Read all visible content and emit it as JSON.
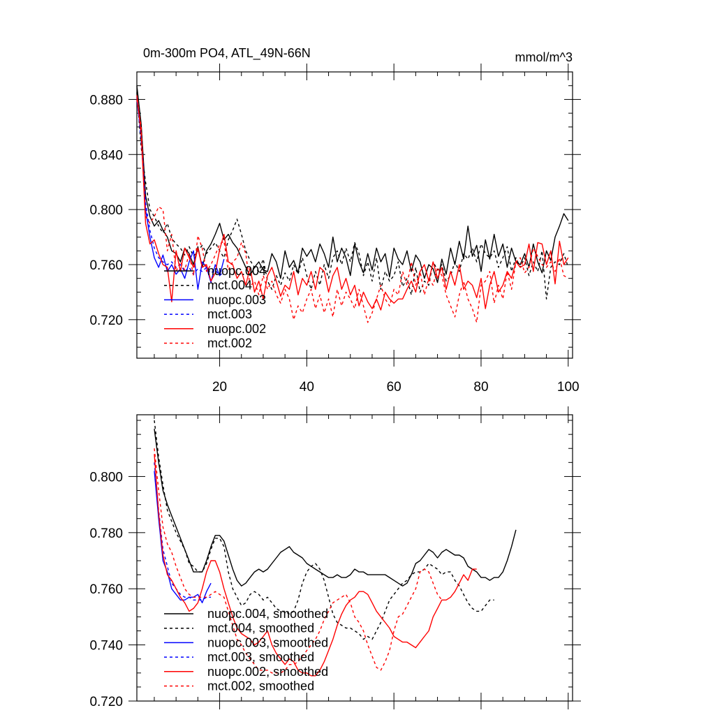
{
  "chart_data": [
    {
      "type": "line",
      "title": "0m-300m PO4, ATL_49N-66N",
      "units": "mmol/m^3",
      "xlim": [
        1,
        101
      ],
      "ylim": [
        0.692,
        0.9
      ],
      "x_ticks": [
        20,
        40,
        60,
        80,
        100
      ],
      "y_ticks": [
        0.72,
        0.76,
        0.8,
        0.84,
        0.88
      ],
      "y_tick_labels": [
        "0.720",
        "0.760",
        "0.800",
        "0.840",
        "0.880"
      ],
      "x_start": 1,
      "series": [
        {
          "name": "nuopc.004",
          "color": "#000000",
          "dash": "solid",
          "values": [
            0.89,
            0.862,
            0.81,
            0.795,
            0.788,
            0.792,
            0.785,
            0.78,
            0.77,
            0.768,
            0.762,
            0.772,
            0.768,
            0.76,
            0.773,
            0.758,
            0.77,
            0.775,
            0.782,
            0.79,
            0.778,
            0.782,
            0.776,
            0.772,
            0.765,
            0.758,
            0.752,
            0.758,
            0.762,
            0.756,
            0.755,
            0.768,
            0.762,
            0.75,
            0.77,
            0.758,
            0.763,
            0.754,
            0.772,
            0.766,
            0.771,
            0.762,
            0.775,
            0.768,
            0.758,
            0.78,
            0.762,
            0.772,
            0.765,
            0.752,
            0.775,
            0.762,
            0.754,
            0.768,
            0.756,
            0.772,
            0.762,
            0.768,
            0.751,
            0.772,
            0.764,
            0.76,
            0.77,
            0.755,
            0.767,
            0.762,
            0.75,
            0.76,
            0.757,
            0.747,
            0.764,
            0.753,
            0.772,
            0.76,
            0.777,
            0.764,
            0.788,
            0.766,
            0.774,
            0.755,
            0.778,
            0.764,
            0.782,
            0.766,
            0.775,
            0.758,
            0.772,
            0.762,
            0.76,
            0.768,
            0.758,
            0.775,
            0.762,
            0.754,
            0.77,
            0.763,
            0.78,
            0.788,
            0.797,
            0.792
          ]
        },
        {
          "name": "mct.004",
          "color": "#000000",
          "dash": "dashed",
          "values": [
            0.885,
            0.845,
            0.82,
            0.8,
            0.795,
            0.788,
            0.783,
            0.79,
            0.779,
            0.775,
            0.772,
            0.767,
            0.773,
            0.766,
            0.77,
            0.774,
            0.768,
            0.772,
            0.776,
            0.77,
            0.765,
            0.778,
            0.785,
            0.793,
            0.782,
            0.77,
            0.763,
            0.758,
            0.755,
            0.764,
            0.748,
            0.742,
            0.752,
            0.745,
            0.754,
            0.748,
            0.76,
            0.753,
            0.765,
            0.752,
            0.742,
            0.755,
            0.745,
            0.76,
            0.75,
            0.765,
            0.77,
            0.76,
            0.772,
            0.762,
            0.776,
            0.768,
            0.752,
            0.762,
            0.748,
            0.765,
            0.742,
            0.755,
            0.748,
            0.752,
            0.762,
            0.744,
            0.75,
            0.738,
            0.758,
            0.74,
            0.748,
            0.745,
            0.762,
            0.756,
            0.76,
            0.748,
            0.752,
            0.762,
            0.755,
            0.768,
            0.764,
            0.772,
            0.762,
            0.775,
            0.768,
            0.765,
            0.77,
            0.758,
            0.765,
            0.773,
            0.755,
            0.765,
            0.758,
            0.765,
            0.752,
            0.762,
            0.755,
            0.77,
            0.735,
            0.758,
            0.762,
            0.76,
            0.768,
            0.758
          ]
        },
        {
          "name": "nuopc.003",
          "color": "#0000ff",
          "dash": "solid",
          "values": [
            0.88,
            0.855,
            0.8,
            0.78,
            0.765,
            0.758,
            0.767,
            0.755,
            0.76,
            0.753,
            0.757,
            0.75,
            0.762,
            0.77,
            0.742,
            0.762,
            0.758,
            0.747,
            0.76,
            0.752,
            0.764
          ]
        },
        {
          "name": "mct.003",
          "color": "#0000ff",
          "dash": "dashed",
          "values": [
            0.882,
            0.85,
            0.805,
            0.785,
            0.772,
            0.765,
            0.762,
            0.76,
            0.762,
            0.758,
            0.76,
            0.755,
            0.758,
            0.753,
            0.757,
            0.755,
            0.758,
            0.754,
            0.756,
            0.752,
            0.755
          ]
        },
        {
          "name": "nuopc.002",
          "color": "#ff0000",
          "dash": "solid",
          "values": [
            0.883,
            0.855,
            0.79,
            0.775,
            0.778,
            0.768,
            0.76,
            0.758,
            0.733,
            0.77,
            0.755,
            0.772,
            0.765,
            0.758,
            0.772,
            0.758,
            0.76,
            0.748,
            0.754,
            0.771,
            0.782,
            0.762,
            0.76,
            0.75,
            0.755,
            0.745,
            0.758,
            0.74,
            0.748,
            0.735,
            0.752,
            0.758,
            0.748,
            0.737,
            0.745,
            0.742,
            0.755,
            0.738,
            0.75,
            0.745,
            0.755,
            0.742,
            0.758,
            0.755,
            0.74,
            0.752,
            0.758,
            0.742,
            0.75,
            0.738,
            0.745,
            0.73,
            0.74,
            0.733,
            0.728,
            0.735,
            0.727,
            0.74,
            0.735,
            0.732,
            0.735,
            0.735,
            0.742,
            0.748,
            0.74,
            0.755,
            0.76,
            0.748,
            0.762,
            0.75,
            0.758,
            0.742,
            0.755,
            0.745,
            0.76,
            0.742,
            0.748,
            0.745,
            0.736,
            0.75,
            0.728,
            0.745,
            0.755,
            0.74,
            0.745,
            0.755,
            0.75,
            0.762,
            0.758,
            0.76,
            0.775,
            0.755,
            0.776,
            0.775,
            0.76,
            0.77,
            0.746,
            0.777,
            0.76,
            0.765
          ]
        },
        {
          "name": "mct.002",
          "color": "#ff0000",
          "dash": "dashed",
          "values": [
            0.88,
            0.86,
            0.795,
            0.79,
            0.795,
            0.802,
            0.8,
            0.77,
            0.782,
            0.755,
            0.762,
            0.756,
            0.768,
            0.752,
            0.781,
            0.772,
            0.755,
            0.76,
            0.767,
            0.775,
            0.777,
            0.756,
            0.762,
            0.765,
            0.776,
            0.768,
            0.744,
            0.748,
            0.738,
            0.752,
            0.742,
            0.748,
            0.738,
            0.732,
            0.742,
            0.735,
            0.72,
            0.73,
            0.725,
            0.735,
            0.742,
            0.728,
            0.738,
            0.725,
            0.735,
            0.722,
            0.742,
            0.73,
            0.74,
            0.735,
            0.728,
            0.742,
            0.73,
            0.718,
            0.725,
            0.735,
            0.745,
            0.735,
            0.73,
            0.742,
            0.738,
            0.755,
            0.745,
            0.762,
            0.745,
            0.755,
            0.738,
            0.75,
            0.745,
            0.758,
            0.752,
            0.738,
            0.73,
            0.722,
            0.738,
            0.748,
            0.735,
            0.728,
            0.718,
            0.745,
            0.748,
            0.755,
            0.732,
            0.745,
            0.735,
            0.755,
            0.742,
            0.762,
            0.765,
            0.754,
            0.758,
            0.772,
            0.766,
            0.76,
            0.758,
            0.762,
            0.755,
            0.765,
            0.752,
            0.75
          ]
        }
      ],
      "legend": [
        "nuopc.004",
        "mct.004",
        "nuopc.003",
        "mct.003",
        "nuopc.002",
        "mct.002"
      ]
    },
    {
      "type": "line",
      "xlim": [
        1,
        101
      ],
      "ylim": [
        0.72,
        0.822
      ],
      "x_ticks": [
        20,
        40,
        60,
        80,
        100
      ],
      "y_ticks": [
        0.72,
        0.74,
        0.76,
        0.78,
        0.8
      ],
      "y_tick_labels": [
        "0.720",
        "0.740",
        "0.760",
        "0.780",
        "0.800"
      ],
      "x_start": 5,
      "series": [
        {
          "name": "nuopc.004, smoothed",
          "color": "#000000",
          "dash": "solid",
          "values": [
            0.817,
            0.805,
            0.795,
            0.79,
            0.786,
            0.782,
            0.778,
            0.774,
            0.77,
            0.766,
            0.766,
            0.766,
            0.77,
            0.775,
            0.779,
            0.779,
            0.777,
            0.772,
            0.767,
            0.763,
            0.761,
            0.762,
            0.764,
            0.766,
            0.767,
            0.766,
            0.767,
            0.769,
            0.771,
            0.773,
            0.774,
            0.775,
            0.773,
            0.772,
            0.771,
            0.769,
            0.768,
            0.767,
            0.766,
            0.765,
            0.764,
            0.764,
            0.765,
            0.764,
            0.764,
            0.765,
            0.767,
            0.766,
            0.766,
            0.765,
            0.765,
            0.765,
            0.765,
            0.765,
            0.764,
            0.763,
            0.762,
            0.761,
            0.762,
            0.765,
            0.769,
            0.77,
            0.772,
            0.774,
            0.773,
            0.771,
            0.773,
            0.774,
            0.773,
            0.772,
            0.772,
            0.771,
            0.768,
            0.767,
            0.766,
            0.764,
            0.764,
            0.763,
            0.764,
            0.764,
            0.766,
            0.77,
            0.775,
            0.781
          ]
        },
        {
          "name": "mct.004, smoothed",
          "color": "#000000",
          "dash": "dashed",
          "values": [
            0.82,
            0.807,
            0.797,
            0.788,
            0.784,
            0.78,
            0.777,
            0.774,
            0.769,
            0.768,
            0.766,
            0.766,
            0.769,
            0.774,
            0.778,
            0.778,
            0.775,
            0.766,
            0.76,
            0.757,
            0.754,
            0.755,
            0.758,
            0.759,
            0.758,
            0.756,
            0.757,
            0.755,
            0.753,
            0.752,
            0.752,
            0.751,
            0.752,
            0.756,
            0.762,
            0.766,
            0.768,
            0.769,
            0.767,
            0.763,
            0.757,
            0.751,
            0.748,
            0.747,
            0.746,
            0.746,
            0.745,
            0.744,
            0.742,
            0.743,
            0.742,
            0.745,
            0.748,
            0.752,
            0.756,
            0.758,
            0.76,
            0.762,
            0.763,
            0.765,
            0.766,
            0.766,
            0.767,
            0.769,
            0.768,
            0.767,
            0.765,
            0.766,
            0.766,
            0.763,
            0.761,
            0.758,
            0.755,
            0.753,
            0.752,
            0.752,
            0.754,
            0.756,
            0.756
          ]
        },
        {
          "name": "nuopc.003, smoothed",
          "color": "#0000ff",
          "dash": "solid",
          "values": [
            0.802,
            0.785,
            0.77,
            0.766,
            0.76,
            0.758,
            0.756,
            0.756,
            0.757,
            0.757,
            0.758,
            0.755,
            0.759,
            0.762
          ]
        },
        {
          "name": "mct.003, smoothed",
          "color": "#0000ff",
          "dash": "dashed",
          "values": [
            0.805,
            0.788,
            0.774,
            0.768,
            0.762,
            0.76,
            0.758,
            0.757,
            0.757,
            0.756,
            0.756,
            0.756,
            0.757,
            0.757
          ]
        },
        {
          "name": "nuopc.002, smoothed",
          "color": "#ff0000",
          "dash": "solid",
          "values": [
            0.808,
            0.787,
            0.772,
            0.765,
            0.763,
            0.76,
            0.757,
            0.755,
            0.752,
            0.753,
            0.755,
            0.76,
            0.766,
            0.77,
            0.77,
            0.766,
            0.76,
            0.755,
            0.75,
            0.746,
            0.744,
            0.743,
            0.742,
            0.74,
            0.741,
            0.743,
            0.745,
            0.74,
            0.737,
            0.735,
            0.733,
            0.735,
            0.734,
            0.731,
            0.73,
            0.73,
            0.729,
            0.729,
            0.731,
            0.734,
            0.738,
            0.742,
            0.747,
            0.751,
            0.754,
            0.756,
            0.757,
            0.759,
            0.759,
            0.758,
            0.755,
            0.752,
            0.75,
            0.748,
            0.746,
            0.743,
            0.742,
            0.741,
            0.741,
            0.74,
            0.739,
            0.741,
            0.743,
            0.745,
            0.75,
            0.753,
            0.756,
            0.756,
            0.757,
            0.759,
            0.762,
            0.765,
            0.763,
            0.767,
            0.767
          ]
        },
        {
          "name": "mct.002, smoothed",
          "color": "#ff0000",
          "dash": "dashed",
          "values": [
            0.81,
            0.795,
            0.782,
            0.776,
            0.773,
            0.768,
            0.764,
            0.76,
            0.758,
            0.757,
            0.757,
            0.757,
            0.757,
            0.758,
            0.759,
            0.758,
            0.757,
            0.752,
            0.747,
            0.742,
            0.74,
            0.737,
            0.735,
            0.733,
            0.731,
            0.731,
            0.731,
            0.73,
            0.73,
            0.73,
            0.731,
            0.733,
            0.733,
            0.734,
            0.736,
            0.738,
            0.74,
            0.742,
            0.745,
            0.749,
            0.752,
            0.755,
            0.756,
            0.757,
            0.758,
            0.755,
            0.75,
            0.748,
            0.745,
            0.74,
            0.736,
            0.732,
            0.731,
            0.734,
            0.738,
            0.745,
            0.75,
            0.751,
            0.754,
            0.757,
            0.76,
            0.766,
            0.767,
            0.766,
            0.762,
            0.758,
            0.756
          ]
        }
      ],
      "legend": [
        "nuopc.004, smoothed",
        "mct.004, smoothed",
        "nuopc.003, smoothed",
        "mct.003, smoothed",
        "nuopc.002, smoothed",
        "mct.002, smoothed"
      ]
    }
  ]
}
